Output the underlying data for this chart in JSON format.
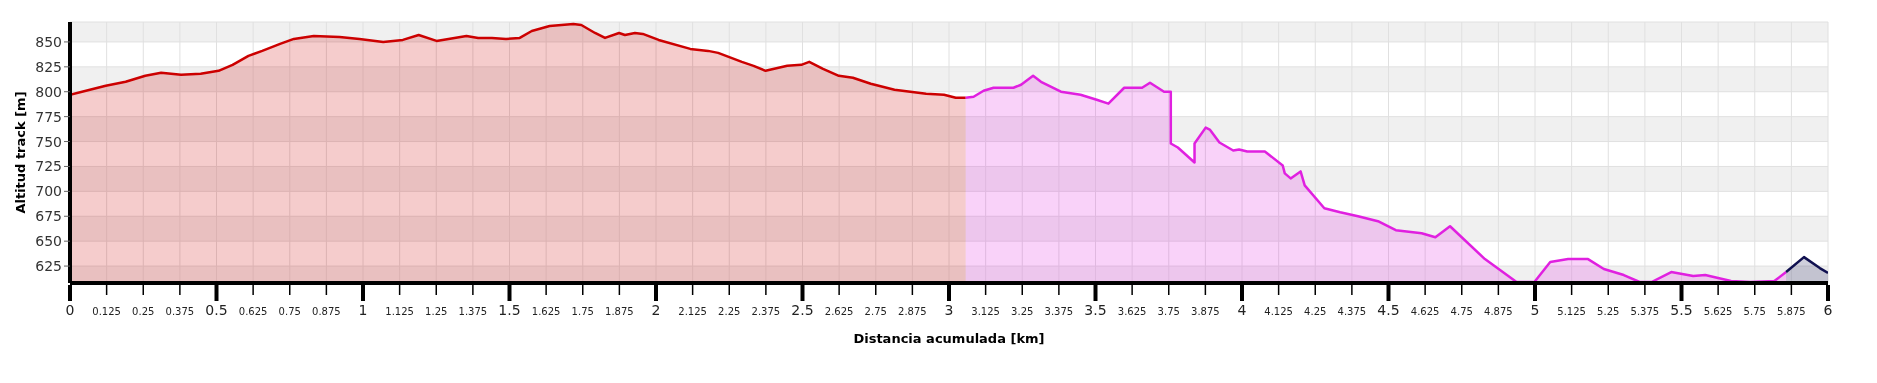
{
  "chart_data": {
    "type": "area",
    "xlabel": "Distancia acumulada [km]",
    "ylabel": "Altitud track [m]",
    "xlim": [
      0,
      6
    ],
    "xticks": [
      0,
      0.125,
      0.25,
      0.375,
      0.5,
      0.625,
      0.75,
      0.875,
      1,
      1.125,
      1.25,
      1.375,
      1.5,
      1.625,
      1.75,
      1.875,
      2,
      2.125,
      2.25,
      2.375,
      2.5,
      2.625,
      2.75,
      2.875,
      3,
      3.125,
      3.25,
      3.375,
      3.5,
      3.625,
      3.75,
      3.875,
      4,
      4.125,
      4.25,
      4.375,
      4.5,
      4.625,
      4.75,
      4.875,
      5,
      5.125,
      5.25,
      5.375,
      5.5,
      5.625,
      5.75,
      5.875,
      6
    ],
    "ylim": [
      608,
      870
    ],
    "yticks": [
      625,
      650,
      675,
      700,
      725,
      750,
      775,
      800,
      825,
      850
    ],
    "grid": true,
    "series": [
      {
        "color": "#cc0000",
        "x": [
          0,
          0.068,
          0.122,
          0.19,
          0.257,
          0.311,
          0.379,
          0.446,
          0.507,
          0.555,
          0.609,
          0.656,
          0.717,
          0.764,
          0.832,
          0.92,
          0.988,
          1.069,
          1.136,
          1.19,
          1.251,
          1.353,
          1.393,
          1.44,
          1.488,
          1.535,
          1.576,
          1.637,
          1.718,
          1.745,
          1.792,
          1.826,
          1.874,
          1.894,
          1.928,
          1.955,
          2.009,
          2.117,
          2.178,
          2.212,
          2.293,
          2.333,
          2.374,
          2.448,
          2.496,
          2.523,
          2.57,
          2.624,
          2.672,
          2.733,
          2.814,
          2.868,
          2.922,
          2.983,
          3.023,
          3.057
        ],
        "values": [
          797,
          802,
          806,
          810,
          816,
          819,
          817,
          818,
          821,
          827,
          836,
          841,
          848,
          853,
          856,
          855,
          853,
          850,
          852,
          857,
          851,
          856,
          854,
          854,
          853,
          854,
          861,
          866,
          868,
          867,
          859,
          854,
          859,
          857,
          859,
          858,
          852,
          843,
          841,
          839,
          830,
          826,
          821,
          826,
          827,
          830,
          823,
          816,
          814,
          808,
          802,
          800,
          798,
          797,
          794,
          794
        ]
      },
      {
        "color": "#e020e0",
        "x": [
          3.057,
          3.084,
          3.118,
          3.152,
          3.22,
          3.246,
          3.287,
          3.314,
          3.382,
          3.449,
          3.504,
          3.544,
          3.598,
          3.659,
          3.686,
          3.734,
          3.757,
          3.757,
          3.781,
          3.838,
          3.838,
          3.876,
          3.89,
          3.923,
          3.97,
          3.99,
          4.018,
          4.078,
          4.139,
          4.146,
          4.166,
          4.2,
          4.214,
          4.281,
          4.335,
          4.396,
          4.464,
          4.525,
          4.613,
          4.66,
          4.71,
          4.829,
          4.937,
          4.998,
          5.052,
          5.113,
          5.181,
          5.235,
          5.303,
          5.357,
          5.398,
          5.465,
          5.54,
          5.581,
          5.669,
          5.736,
          5.817,
          5.857
        ],
        "values": [
          794,
          795,
          801,
          804,
          804,
          807,
          816,
          810,
          800,
          797,
          792,
          788,
          804,
          804,
          809,
          800,
          800,
          748,
          744,
          729,
          748,
          764,
          762,
          749,
          741,
          742,
          740,
          740,
          726,
          718,
          713,
          720,
          706,
          683,
          679,
          675,
          670,
          661,
          658,
          654,
          665,
          632,
          609,
          609,
          629,
          632,
          632,
          622,
          616,
          609,
          609,
          619,
          615,
          616,
          610,
          609,
          610,
          619
        ]
      },
      {
        "color": "#101050",
        "x": [
          5.857,
          5.918,
          5.972,
          6
        ],
        "values": [
          619,
          634,
          623,
          618
        ]
      }
    ]
  }
}
